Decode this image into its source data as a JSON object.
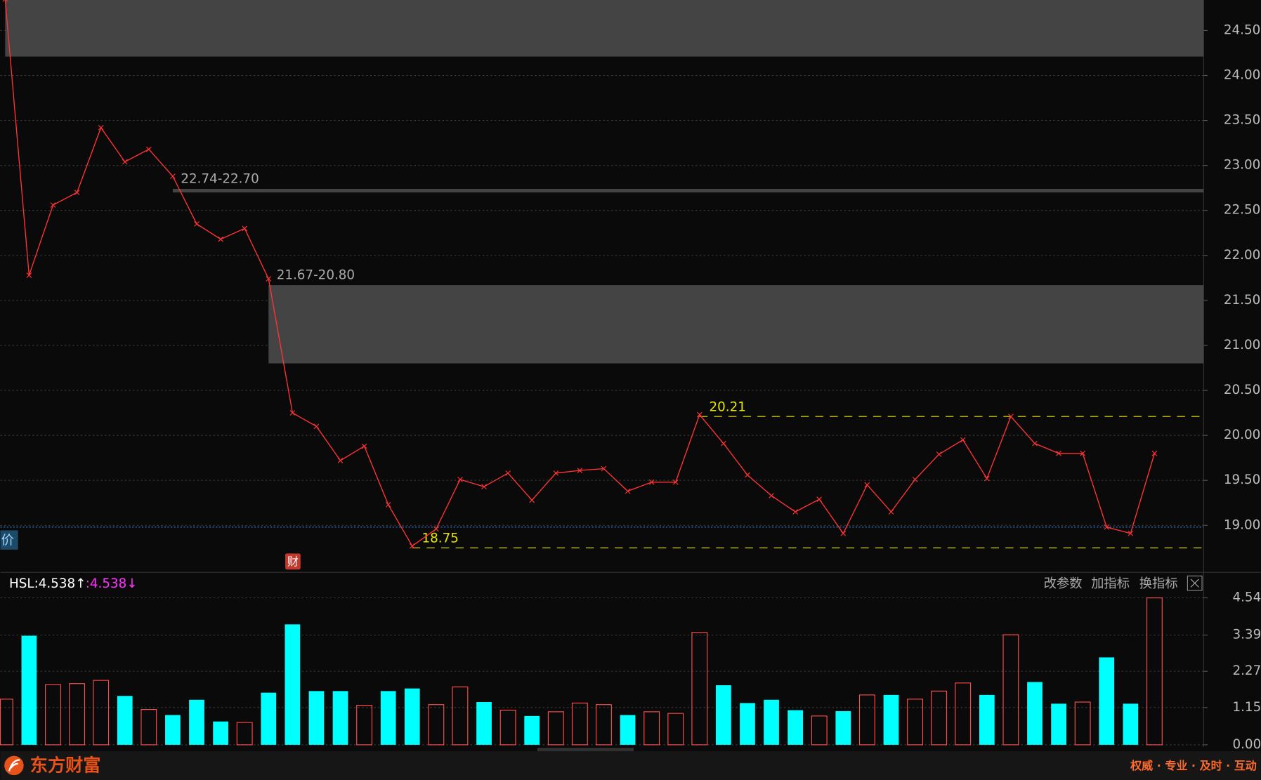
{
  "chart_data": [
    {
      "type": "line",
      "series": [
        {
          "color": "#ff3333",
          "values": [
            24.85,
            21.78,
            22.56,
            22.7,
            23.42,
            23.04,
            23.18,
            22.88,
            22.35,
            22.18,
            22.3,
            21.74,
            20.25,
            20.1,
            19.72,
            19.88,
            19.23,
            18.77,
            18.96,
            19.51,
            19.43,
            19.58,
            19.28,
            19.58,
            19.61,
            19.63,
            19.38,
            19.48,
            19.48,
            20.23,
            19.91,
            19.56,
            19.33,
            19.15,
            19.29,
            18.91,
            19.45,
            19.15,
            19.51,
            19.79,
            19.95,
            19.52,
            20.21,
            19.91,
            19.8,
            19.8,
            18.98,
            18.91,
            19.8
          ]
        }
      ],
      "ylim": [
        18.482,
        24.839
      ],
      "yticks": [
        {
          "value": 19,
          "label": "19.00"
        },
        {
          "value": 19.5,
          "label": "19.50"
        },
        {
          "value": 20,
          "label": "20.00"
        },
        {
          "value": 20.5,
          "label": "20.50"
        },
        {
          "value": 21,
          "label": "21.00"
        },
        {
          "value": 21.5,
          "label": "21.50"
        },
        {
          "value": 22,
          "label": "22.00"
        },
        {
          "value": 22.5,
          "label": "22.50"
        },
        {
          "value": 23,
          "label": "23.00"
        },
        {
          "value": 23.5,
          "label": "23.50"
        },
        {
          "value": 24,
          "label": "24.00"
        },
        {
          "value": 24.5,
          "label": "24.50"
        }
      ],
      "grid": true,
      "zones": [
        {
          "high": 24.84,
          "low": 24.21,
          "start": 0
        },
        {
          "label": "22.74-22.70",
          "high": 22.74,
          "low": 22.7,
          "start": 7
        },
        {
          "label": "21.67-20.80",
          "high": 21.67,
          "low": 20.8,
          "start": 11
        }
      ],
      "zone_color": "#444444",
      "levels": [
        {
          "value": 20.21,
          "start": 29
        },
        {
          "value": 18.75,
          "start": 17
        }
      ],
      "level_color": "#e6e600",
      "price_line": {
        "label": "价",
        "value": 18.98,
        "color": "#3a7fd5"
      },
      "markers": [
        {
          "label": "财",
          "index": 12
        }
      ]
    },
    {
      "type": "bar",
      "legend": "HSL:4.538↑",
      "legend2": ":4.538↓",
      "values": [
        1.41,
        3.37,
        1.86,
        1.89,
        1.99,
        1.51,
        1.09,
        0.92,
        1.39,
        0.72,
        0.69,
        1.61,
        3.72,
        1.66,
        1.66,
        1.22,
        1.66,
        1.74,
        1.24,
        1.79,
        1.32,
        1.07,
        0.89,
        1.02,
        1.29,
        1.24,
        0.92,
        1.02,
        0.97,
        3.47,
        1.84,
        1.29,
        1.39,
        1.07,
        0.89,
        1.04,
        1.54,
        1.54,
        1.41,
        1.66,
        1.91,
        1.54,
        3.4,
        1.94,
        1.27,
        1.32,
        2.7,
        1.27,
        4.538
      ],
      "colors": [
        "#ff4d4d",
        "#00ffff",
        "#ff4d4d",
        "#ff4d4d",
        "#ff4d4d",
        "#00ffff",
        "#ff4d4d",
        "#00ffff",
        "#00ffff",
        "#00ffff",
        "#ff4d4d",
        "#00ffff",
        "#00ffff",
        "#00ffff",
        "#00ffff",
        "#ff4d4d",
        "#00ffff",
        "#00ffff",
        "#ff4d4d",
        "#ff4d4d",
        "#00ffff",
        "#ff4d4d",
        "#00ffff",
        "#ff4d4d",
        "#ff4d4d",
        "#ff4d4d",
        "#00ffff",
        "#ff4d4d",
        "#ff4d4d",
        "#ff4d4d",
        "#00ffff",
        "#00ffff",
        "#00ffff",
        "#00ffff",
        "#ff4d4d",
        "#00ffff",
        "#ff4d4d",
        "#00ffff",
        "#ff4d4d",
        "#ff4d4d",
        "#ff4d4d",
        "#00ffff",
        "#ff4d4d",
        "#00ffff",
        "#00ffff",
        "#ff4d4d",
        "#00ffff",
        "#00ffff",
        "#ff4d4d"
      ],
      "hollow_color": "#ff4d4d",
      "ylim": [
        -0.02,
        5.29
      ],
      "yticks": [
        {
          "value": 0,
          "label": "0.00"
        },
        1.15,
        2.27,
        3.39,
        4.54
      ],
      "grid": true
    }
  ],
  "toolbar": {
    "buttons": [
      "改参数",
      "加指标",
      "换指标"
    ]
  },
  "footer": {
    "logo": "东方财富",
    "slogan": "权威 · 专业 · 及时 · 互动"
  }
}
